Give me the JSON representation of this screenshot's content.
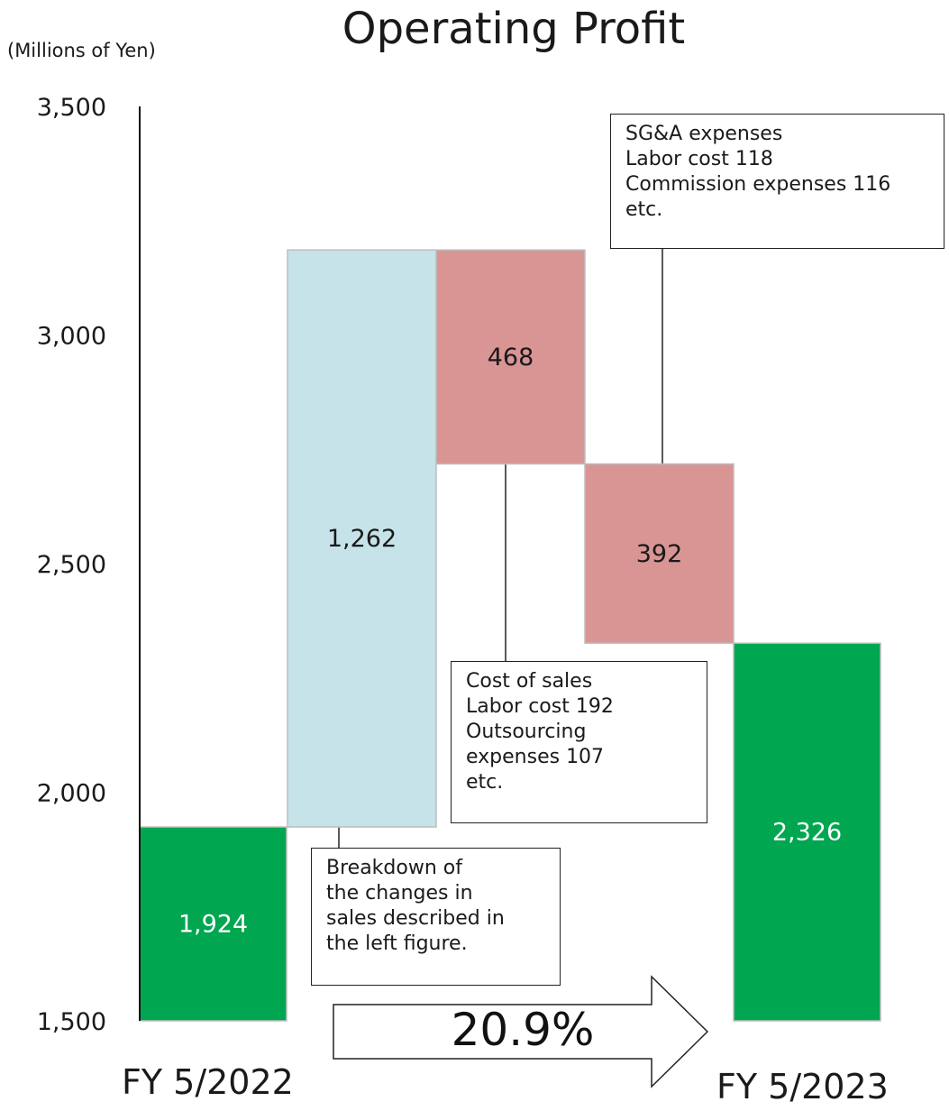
{
  "chart_data": {
    "type": "waterfall",
    "title": "Operating Profit",
    "unit_label": "(Millions of Yen)",
    "ylim": [
      1500,
      3500
    ],
    "yticks": [
      "3,500",
      "3,000",
      "2,500",
      "2,000",
      "1,500"
    ],
    "ytick_values": [
      3500,
      3000,
      2500,
      2000,
      1500
    ],
    "bars": [
      {
        "label": "1,924",
        "value": 1924,
        "kind": "total",
        "color": "#00a650",
        "label_color": "#ffffff"
      },
      {
        "label": "1,262",
        "value": 1262,
        "kind": "increase",
        "color": "#c5e3e8",
        "label_color": "#1a1a1a"
      },
      {
        "label": "468",
        "value": -468,
        "kind": "decrease",
        "color": "#d99594",
        "label_color": "#1a1a1a"
      },
      {
        "label": "392",
        "value": -392,
        "kind": "decrease",
        "color": "#d99594",
        "label_color": "#1a1a1a"
      },
      {
        "label": "2,326",
        "value": 2326,
        "kind": "total",
        "color": "#00a650",
        "label_color": "#ffffff"
      }
    ],
    "x_labels": [
      "FY 5/2022",
      "FY 5/2023"
    ],
    "growth_label": "20.9%",
    "annotations": {
      "sales_note": [
        "Breakdown of",
        "the changes in",
        "sales described in",
        "the left figure."
      ],
      "cost_note": [
        "Cost of sales",
        "Labor cost 192",
        "Outsourcing",
        "expenses 107",
        "etc."
      ],
      "sga_note": [
        "SG&A expenses",
        "Labor cost 118",
        "Commission expenses 116",
        "etc."
      ]
    },
    "colors": {
      "total": "#00a650",
      "increase": "#c5e3e8",
      "decrease": "#d99594",
      "bar_border": "#bdbdbd"
    }
  }
}
